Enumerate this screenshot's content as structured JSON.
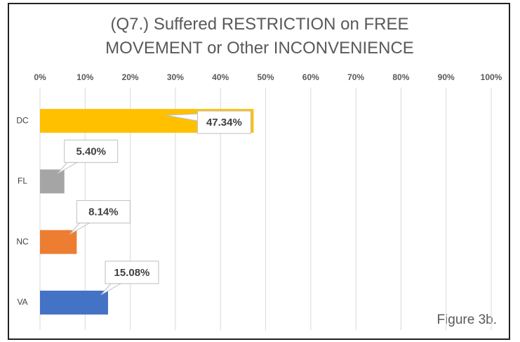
{
  "chart_data": {
    "type": "bar",
    "orientation": "horizontal",
    "title": "(Q7.) Suffered RESTRICTION on FREE MOVEMENT or Other INCONVENIENCE",
    "categories": [
      "DC",
      "FL",
      "NC",
      "VA"
    ],
    "values": [
      47.34,
      5.4,
      8.14,
      15.08
    ],
    "value_labels": [
      "47.34%",
      "5.40%",
      "8.14%",
      "15.08%"
    ],
    "colors": [
      "#FFC000",
      "#A5A5A5",
      "#ED7D31",
      "#4472C4"
    ],
    "xlim": [
      0,
      100
    ],
    "xticks": [
      {
        "value": 0,
        "label": "0%"
      },
      {
        "value": 10,
        "label": "10%"
      },
      {
        "value": 20,
        "label": "20%"
      },
      {
        "value": 30,
        "label": "30%"
      },
      {
        "value": 40,
        "label": "40%"
      },
      {
        "value": 50,
        "label": "50%"
      },
      {
        "value": 60,
        "label": "60%"
      },
      {
        "value": 70,
        "label": "70%"
      },
      {
        "value": 80,
        "label": "80%"
      },
      {
        "value": 90,
        "label": "90%"
      },
      {
        "value": 100,
        "label": "100%"
      }
    ],
    "grid": true,
    "annotation": "Figure 3b."
  }
}
